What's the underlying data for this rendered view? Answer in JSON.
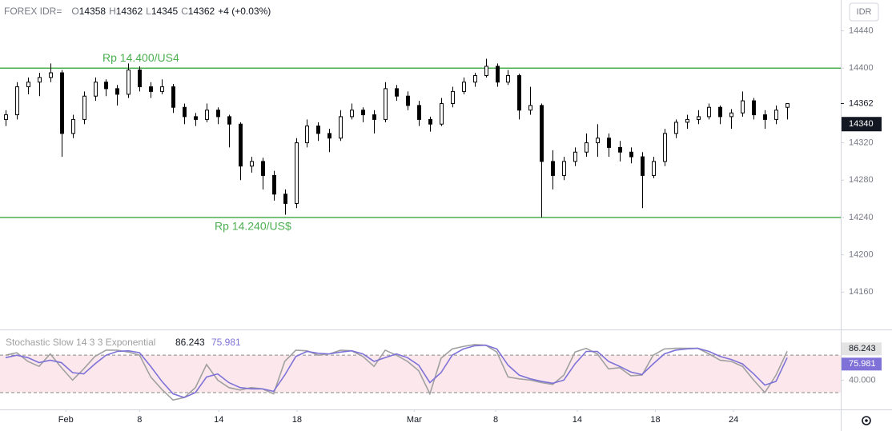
{
  "chart_data": [
    {
      "type": "candlestick",
      "header": {
        "symbol": "FOREX IDR=",
        "items": [
          {
            "label": "O",
            "value": 14358
          },
          {
            "label": "H",
            "value": 14362
          },
          {
            "label": "L",
            "value": 14345
          },
          {
            "label": "C",
            "value": 14362
          }
        ],
        "change": "+4 (+0.03%)"
      },
      "currency": "IDR",
      "x": [
        0,
        1,
        2,
        3,
        4,
        5,
        6,
        7,
        8,
        9,
        10,
        11,
        12,
        13,
        14,
        15,
        16,
        17,
        18,
        19,
        20,
        21,
        22,
        23,
        24,
        25,
        26,
        27,
        28,
        29,
        30,
        31,
        32,
        33,
        34,
        35,
        36,
        37,
        38,
        39,
        40,
        41,
        42,
        43,
        44,
        45,
        46,
        47,
        48,
        49,
        50,
        51,
        52,
        53,
        54,
        55,
        56,
        57,
        58,
        59,
        60,
        61,
        62,
        63,
        64,
        65,
        66,
        67,
        68,
        69,
        70
      ],
      "ohlc": [
        [
          14345,
          14355,
          14338,
          14350
        ],
        [
          14350,
          14385,
          14345,
          14380
        ],
        [
          14380,
          14390,
          14372,
          14385
        ],
        [
          14385,
          14395,
          14370,
          14390
        ],
        [
          14390,
          14405,
          14385,
          14395
        ],
        [
          14395,
          14398,
          14305,
          14330
        ],
        [
          14330,
          14350,
          14325,
          14345
        ],
        [
          14345,
          14375,
          14340,
          14370
        ],
        [
          14370,
          14390,
          14365,
          14385
        ],
        [
          14385,
          14388,
          14370,
          14378
        ],
        [
          14378,
          14382,
          14360,
          14372
        ],
        [
          14372,
          14405,
          14368,
          14398
        ],
        [
          14398,
          14402,
          14375,
          14380
        ],
        [
          14380,
          14385,
          14368,
          14375
        ],
        [
          14375,
          14388,
          14372,
          14380
        ],
        [
          14380,
          14383,
          14352,
          14358
        ],
        [
          14358,
          14362,
          14340,
          14348
        ],
        [
          14348,
          14352,
          14338,
          14345
        ],
        [
          14345,
          14362,
          14342,
          14355
        ],
        [
          14355,
          14358,
          14340,
          14348
        ],
        [
          14348,
          14350,
          14315,
          14340
        ],
        [
          14340,
          14342,
          14280,
          14295
        ],
        [
          14295,
          14305,
          14288,
          14300
        ],
        [
          14300,
          14304,
          14270,
          14285
        ],
        [
          14285,
          14290,
          14258,
          14265
        ],
        [
          14265,
          14270,
          14243,
          14255
        ],
        [
          14255,
          14325,
          14250,
          14320
        ],
        [
          14320,
          14345,
          14315,
          14338
        ],
        [
          14338,
          14342,
          14322,
          14330
        ],
        [
          14330,
          14335,
          14310,
          14325
        ],
        [
          14325,
          14355,
          14322,
          14348
        ],
        [
          14348,
          14362,
          14345,
          14355
        ],
        [
          14355,
          14358,
          14342,
          14350
        ],
        [
          14350,
          14355,
          14330,
          14345
        ],
        [
          14345,
          14385,
          14342,
          14378
        ],
        [
          14378,
          14382,
          14365,
          14370
        ],
        [
          14370,
          14375,
          14355,
          14360
        ],
        [
          14360,
          14365,
          14338,
          14345
        ],
        [
          14345,
          14348,
          14332,
          14340
        ],
        [
          14340,
          14368,
          14338,
          14362
        ],
        [
          14362,
          14380,
          14358,
          14375
        ],
        [
          14375,
          14390,
          14372,
          14385
        ],
        [
          14385,
          14395,
          14380,
          14392
        ],
        [
          14392,
          14410,
          14390,
          14402
        ],
        [
          14402,
          14405,
          14380,
          14385
        ],
        [
          14385,
          14398,
          14382,
          14392
        ],
        [
          14392,
          14394,
          14345,
          14355
        ],
        [
          14355,
          14380,
          14350,
          14360
        ],
        [
          14360,
          14362,
          14240,
          14300
        ],
        [
          14300,
          14312,
          14270,
          14285
        ],
        [
          14285,
          14305,
          14280,
          14300
        ],
        [
          14300,
          14315,
          14295,
          14310
        ],
        [
          14310,
          14330,
          14305,
          14320
        ],
        [
          14320,
          14340,
          14305,
          14325
        ],
        [
          14325,
          14330,
          14305,
          14315
        ],
        [
          14315,
          14322,
          14300,
          14310
        ],
        [
          14310,
          14315,
          14298,
          14305
        ],
        [
          14305,
          14310,
          14250,
          14285
        ],
        [
          14285,
          14305,
          14282,
          14300
        ],
        [
          14300,
          14335,
          14295,
          14330
        ],
        [
          14330,
          14345,
          14325,
          14342
        ],
        [
          14342,
          14350,
          14335,
          14345
        ],
        [
          14345,
          14355,
          14340,
          14348
        ],
        [
          14348,
          14362,
          14345,
          14358
        ],
        [
          14358,
          14360,
          14340,
          14348
        ],
        [
          14348,
          14356,
          14335,
          14352
        ],
        [
          14352,
          14375,
          14348,
          14365
        ],
        [
          14365,
          14368,
          14345,
          14350
        ],
        [
          14350,
          14355,
          14335,
          14345
        ],
        [
          14345,
          14360,
          14340,
          14355
        ],
        [
          14358,
          14362,
          14345,
          14362
        ]
      ],
      "up_color": "#ffffff",
      "down_color": "#000000",
      "wick_color": "#000000",
      "xlim": [
        -0.5,
        74.8
      ],
      "xticks": [
        {
          "value": 5.4,
          "label": "Feb"
        },
        {
          "value": 12.0,
          "label": "8"
        },
        {
          "value": 19.1,
          "label": "14"
        },
        {
          "value": 26.1,
          "label": "18"
        },
        {
          "value": 36.6,
          "label": "Mar"
        },
        {
          "value": 43.9,
          "label": "8"
        },
        {
          "value": 51.2,
          "label": "14"
        },
        {
          "value": 58.2,
          "label": "18"
        },
        {
          "value": 65.2,
          "label": "24"
        }
      ],
      "ylim": [
        14120,
        14473
      ],
      "yticks": [
        14160,
        14200,
        14240,
        14280,
        14320,
        14400,
        14440
      ],
      "last_price": 14362,
      "crosshair_price": 14340,
      "hlines": [
        {
          "value": 14400,
          "label": "Rp 14.400/US4",
          "color": "#4caf50"
        },
        {
          "value": 14240,
          "label": "Rp 14.240/US$",
          "color": "#4caf50"
        }
      ],
      "grid": false
    },
    {
      "type": "line",
      "title": "Stochastic Slow 14 3 3 Exponential",
      "x": [
        0,
        1,
        2,
        3,
        4,
        5,
        6,
        7,
        8,
        9,
        10,
        11,
        12,
        13,
        14,
        15,
        16,
        17,
        18,
        19,
        20,
        21,
        22,
        23,
        24,
        25,
        26,
        27,
        28,
        29,
        30,
        31,
        32,
        33,
        34,
        35,
        36,
        37,
        38,
        39,
        40,
        41,
        42,
        43,
        44,
        45,
        46,
        47,
        48,
        49,
        50,
        51,
        52,
        53,
        54,
        55,
        56,
        57,
        58,
        59,
        60,
        61,
        62,
        63,
        64,
        65,
        66,
        67,
        68,
        69,
        70
      ],
      "series": [
        {
          "color": "#a0a0a0",
          "values": [
            80,
            84,
            70,
            62,
            82,
            60,
            40,
            58,
            78,
            88,
            88,
            85,
            80,
            45,
            25,
            8,
            12,
            28,
            65,
            40,
            28,
            24,
            28,
            26,
            18,
            70,
            88,
            87,
            80,
            82,
            88,
            87,
            78,
            62,
            88,
            80,
            70,
            55,
            18,
            75,
            90,
            94,
            97,
            96,
            85,
            45,
            42,
            40,
            36,
            33,
            48,
            85,
            91,
            82,
            58,
            60,
            47,
            48,
            80,
            90,
            91,
            91,
            91,
            82,
            72,
            70,
            62,
            40,
            20,
            48,
            86.243
          ]
        },
        {
          "color": "#7e72d8",
          "values": [
            76,
            80,
            76,
            68,
            72,
            68,
            52,
            50,
            66,
            80,
            86,
            87,
            84,
            62,
            38,
            18,
            12,
            20,
            45,
            50,
            36,
            28,
            26,
            26,
            22,
            48,
            78,
            86,
            83,
            82,
            85,
            87,
            82,
            70,
            76,
            82,
            76,
            64,
            36,
            52,
            80,
            90,
            95,
            96,
            90,
            64,
            48,
            42,
            38,
            35,
            40,
            66,
            86,
            86,
            70,
            62,
            53,
            49,
            66,
            82,
            88,
            90,
            91,
            86,
            78,
            73,
            66,
            50,
            32,
            38,
            75.981
          ]
        }
      ],
      "band": [
        20,
        80
      ],
      "band_color": "#fce8ec",
      "xlim": [
        -0.5,
        74.8
      ],
      "ylim": [
        -7,
        120
      ],
      "yticks": [
        {
          "value": 40,
          "label": "40.000"
        }
      ]
    }
  ]
}
